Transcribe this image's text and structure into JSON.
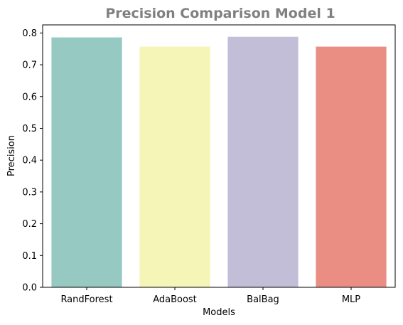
{
  "chart_data": {
    "type": "bar",
    "title": "Precision Comparison Model 1",
    "xlabel": "Models",
    "ylabel": "Precision",
    "categories": [
      "RandForest",
      "AdaBoost",
      "BalBag",
      "MLP"
    ],
    "values": [
      0.786,
      0.757,
      0.788,
      0.757
    ],
    "colors": [
      "#96c9c1",
      "#f5f5b8",
      "#c2bed8",
      "#ea8d82"
    ],
    "ylim": [
      0,
      0.8254
    ],
    "yticks": [
      "0.0",
      "0.1",
      "0.2",
      "0.3",
      "0.4",
      "0.5",
      "0.6",
      "0.7",
      "0.8"
    ],
    "grid": false,
    "legend": "none"
  }
}
